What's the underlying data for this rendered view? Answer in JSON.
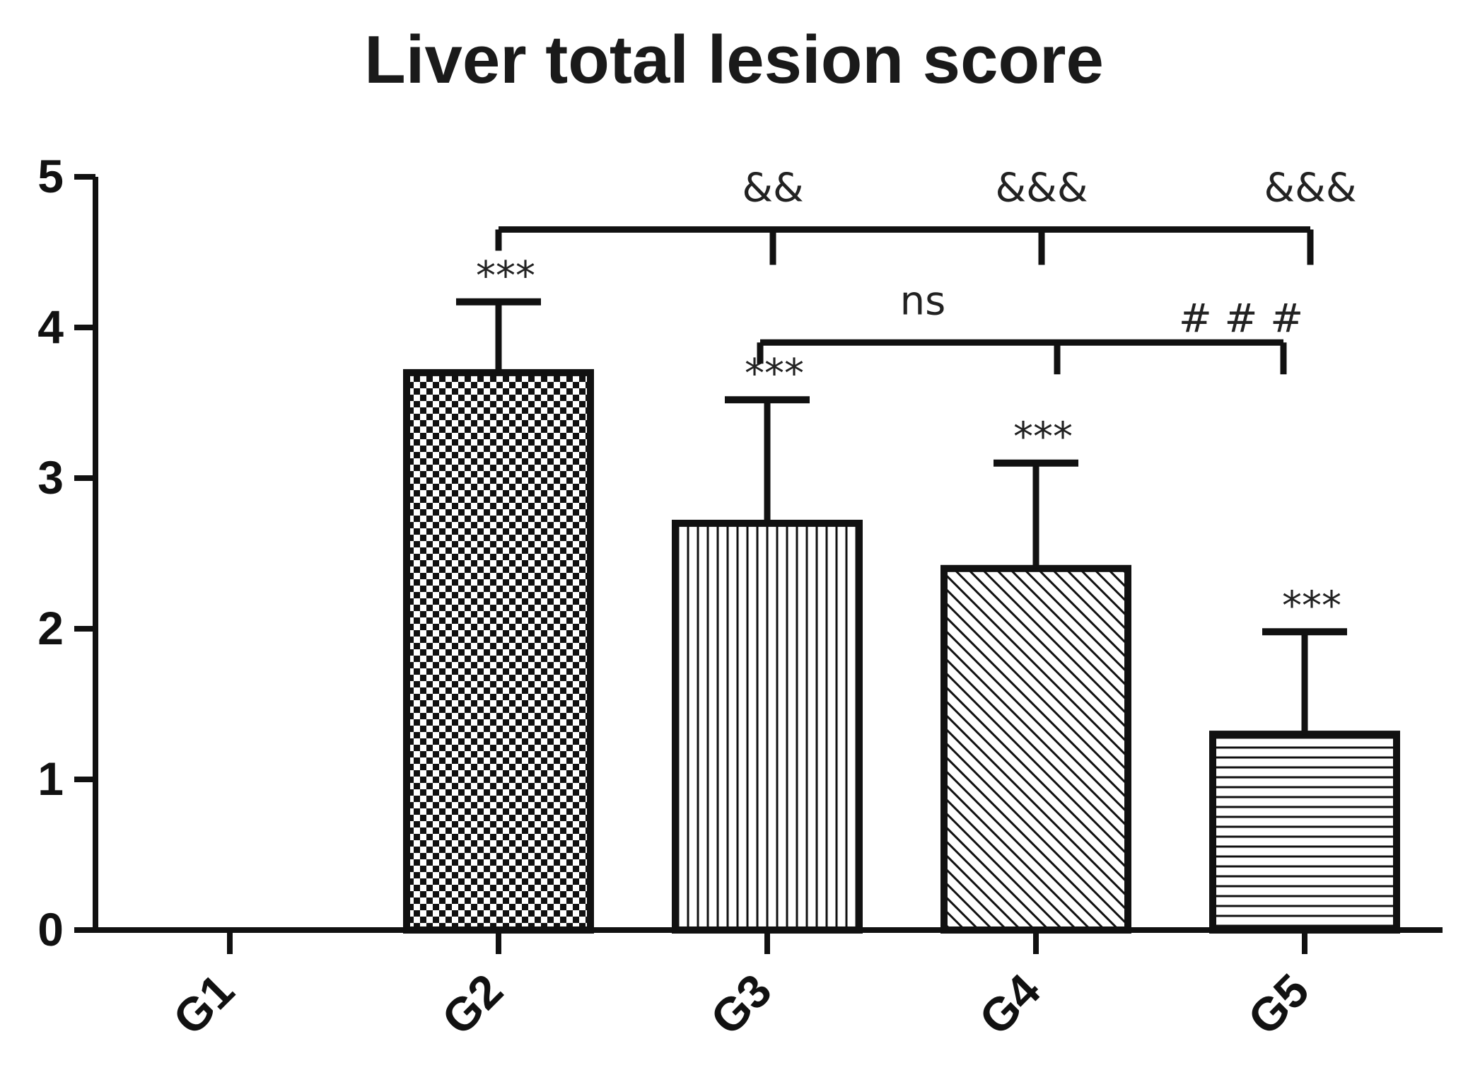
{
  "chart_data": {
    "type": "bar",
    "title": "Liver total lesion score",
    "xlabel": "",
    "ylabel": "",
    "ylim": [
      0,
      5
    ],
    "yticks": [
      "0",
      "1",
      "2",
      "3",
      "4",
      "5"
    ],
    "grid": false,
    "categories": [
      "G1",
      "G2",
      "G3",
      "G4",
      "G5"
    ],
    "values": [
      0,
      3.7,
      2.7,
      2.4,
      1.3
    ],
    "error": [
      0,
      0.47,
      0.82,
      0.7,
      0.68
    ],
    "patterns": [
      "none",
      "checker",
      "vertical-lines",
      "diagonal-lines",
      "horizontal-lines"
    ],
    "bar_annotations": [
      "",
      "***",
      "***",
      "***",
      "***"
    ],
    "comparisons": [
      {
        "from": "G2",
        "to": "G3",
        "label": "&&"
      },
      {
        "from": "G2",
        "to": "G4",
        "label": "&&&"
      },
      {
        "from": "G2",
        "to": "G5",
        "label": "&&&"
      },
      {
        "from": "G3",
        "to": "G4",
        "label": "ns"
      },
      {
        "from": "G3",
        "to": "G5",
        "label": "# # #"
      }
    ]
  },
  "colors": {
    "ink": "#111111",
    "fill": "#ffffff"
  }
}
